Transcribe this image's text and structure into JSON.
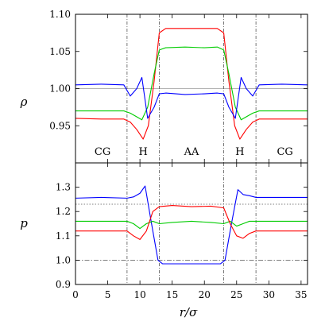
{
  "chart_data": [
    {
      "type": "line",
      "panel": "top",
      "ylabel": "ρ",
      "xlabel": "",
      "xlim": [
        0,
        36
      ],
      "ylim": [
        0.9,
        1.1
      ],
      "xticks": [
        0,
        5,
        10,
        15,
        20,
        25,
        30,
        35
      ],
      "yticks": [
        0.95,
        1.0,
        1.05,
        1.1
      ],
      "ytick_labels": [
        "0.95",
        "1.00",
        "1.05",
        "1.10"
      ],
      "reference_lines": [
        {
          "y": 1.0,
          "style": "solid-gray"
        }
      ],
      "vertical_lines": [
        8,
        13,
        23,
        28
      ],
      "regions": [
        {
          "label": "CG",
          "x": 4.2
        },
        {
          "label": "H",
          "x": 10.5
        },
        {
          "label": "AA",
          "x": 18
        },
        {
          "label": "H",
          "x": 25.5
        },
        {
          "label": "CG",
          "x": 32.5
        }
      ],
      "region_label_y": 0.915,
      "series": [
        {
          "color": "#ff0000",
          "x": [
            0,
            4,
            7.5,
            8.5,
            9.5,
            10.5,
            11.3,
            12.2,
            13,
            14,
            17,
            20,
            22,
            23,
            23.8,
            24.7,
            25.5,
            26.5,
            27.5,
            28.5,
            32,
            36
          ],
          "y": [
            0.96,
            0.959,
            0.959,
            0.955,
            0.945,
            0.932,
            0.95,
            1.01,
            1.075,
            1.081,
            1.081,
            1.081,
            1.081,
            1.075,
            1.01,
            0.95,
            0.932,
            0.945,
            0.955,
            0.959,
            0.959,
            0.959
          ]
        },
        {
          "color": "#00cc00",
          "x": [
            0,
            4,
            7.5,
            8.5,
            9.5,
            10.3,
            11.2,
            12.2,
            13,
            14,
            17,
            20,
            22,
            23,
            23.8,
            24.8,
            25.7,
            26.5,
            27.5,
            28.5,
            32,
            36
          ],
          "y": [
            0.97,
            0.97,
            0.97,
            0.967,
            0.962,
            0.958,
            0.975,
            1.02,
            1.052,
            1.055,
            1.056,
            1.055,
            1.056,
            1.052,
            1.02,
            0.975,
            0.958,
            0.962,
            0.967,
            0.97,
            0.97,
            0.97
          ]
        },
        {
          "color": "#0000ff",
          "x": [
            0,
            4,
            7.5,
            8.5,
            9.5,
            10.3,
            11.2,
            12.2,
            13,
            14,
            17,
            20,
            22,
            23,
            23.8,
            24.8,
            25.7,
            26.5,
            27.5,
            28.5,
            32,
            36
          ],
          "y": [
            1.005,
            1.006,
            1.005,
            0.99,
            1.0,
            1.015,
            0.96,
            0.975,
            0.993,
            0.994,
            0.992,
            0.993,
            0.994,
            0.993,
            0.975,
            0.96,
            1.015,
            1.0,
            0.99,
            1.005,
            1.006,
            1.005
          ]
        }
      ]
    },
    {
      "type": "line",
      "panel": "bottom",
      "ylabel": "p",
      "xlabel": "r/σ",
      "xlim": [
        0,
        36
      ],
      "ylim": [
        0.9,
        1.4
      ],
      "xticks": [
        0,
        5,
        10,
        15,
        20,
        25,
        30,
        35
      ],
      "xtick_labels": [
        "0",
        "5",
        "10",
        "15",
        "20",
        "25",
        "30",
        "35"
      ],
      "yticks": [
        0.9,
        1.0,
        1.1,
        1.2,
        1.3
      ],
      "ytick_labels": [
        "0.9",
        "1.0",
        "1.1",
        "1.2",
        "1.3"
      ],
      "reference_lines": [
        {
          "y": 1.23,
          "style": "dotted"
        },
        {
          "y": 1.0,
          "style": "dashdot"
        }
      ],
      "vertical_lines": [
        8,
        13,
        23,
        28
      ],
      "series": [
        {
          "color": "#0000ff",
          "x": [
            0,
            4,
            8,
            9,
            10,
            10.8,
            11.8,
            12.8,
            13.5,
            15,
            18,
            21,
            22.5,
            23.2,
            24.2,
            25.2,
            26,
            27,
            28,
            32,
            36
          ],
          "y": [
            1.255,
            1.258,
            1.255,
            1.26,
            1.275,
            1.305,
            1.15,
            1.0,
            0.985,
            0.985,
            0.985,
            0.985,
            0.985,
            1.0,
            1.15,
            1.29,
            1.27,
            1.265,
            1.258,
            1.258,
            1.258
          ]
        },
        {
          "color": "#00cc00",
          "x": [
            0,
            4,
            8,
            9,
            10,
            11,
            12,
            13,
            15,
            18,
            21,
            23,
            24,
            25,
            26,
            27,
            28,
            32,
            36
          ],
          "y": [
            1.16,
            1.16,
            1.16,
            1.15,
            1.13,
            1.15,
            1.16,
            1.15,
            1.155,
            1.16,
            1.155,
            1.15,
            1.16,
            1.14,
            1.15,
            1.16,
            1.16,
            1.16,
            1.16
          ]
        },
        {
          "color": "#ff0000",
          "x": [
            0,
            4,
            8,
            9,
            10,
            11,
            12,
            13,
            15,
            18,
            21,
            23,
            24,
            25,
            26,
            27,
            28,
            32,
            36
          ],
          "y": [
            1.12,
            1.12,
            1.12,
            1.1,
            1.085,
            1.12,
            1.2,
            1.22,
            1.225,
            1.22,
            1.222,
            1.215,
            1.15,
            1.1,
            1.09,
            1.11,
            1.12,
            1.12,
            1.12
          ]
        }
      ]
    }
  ]
}
